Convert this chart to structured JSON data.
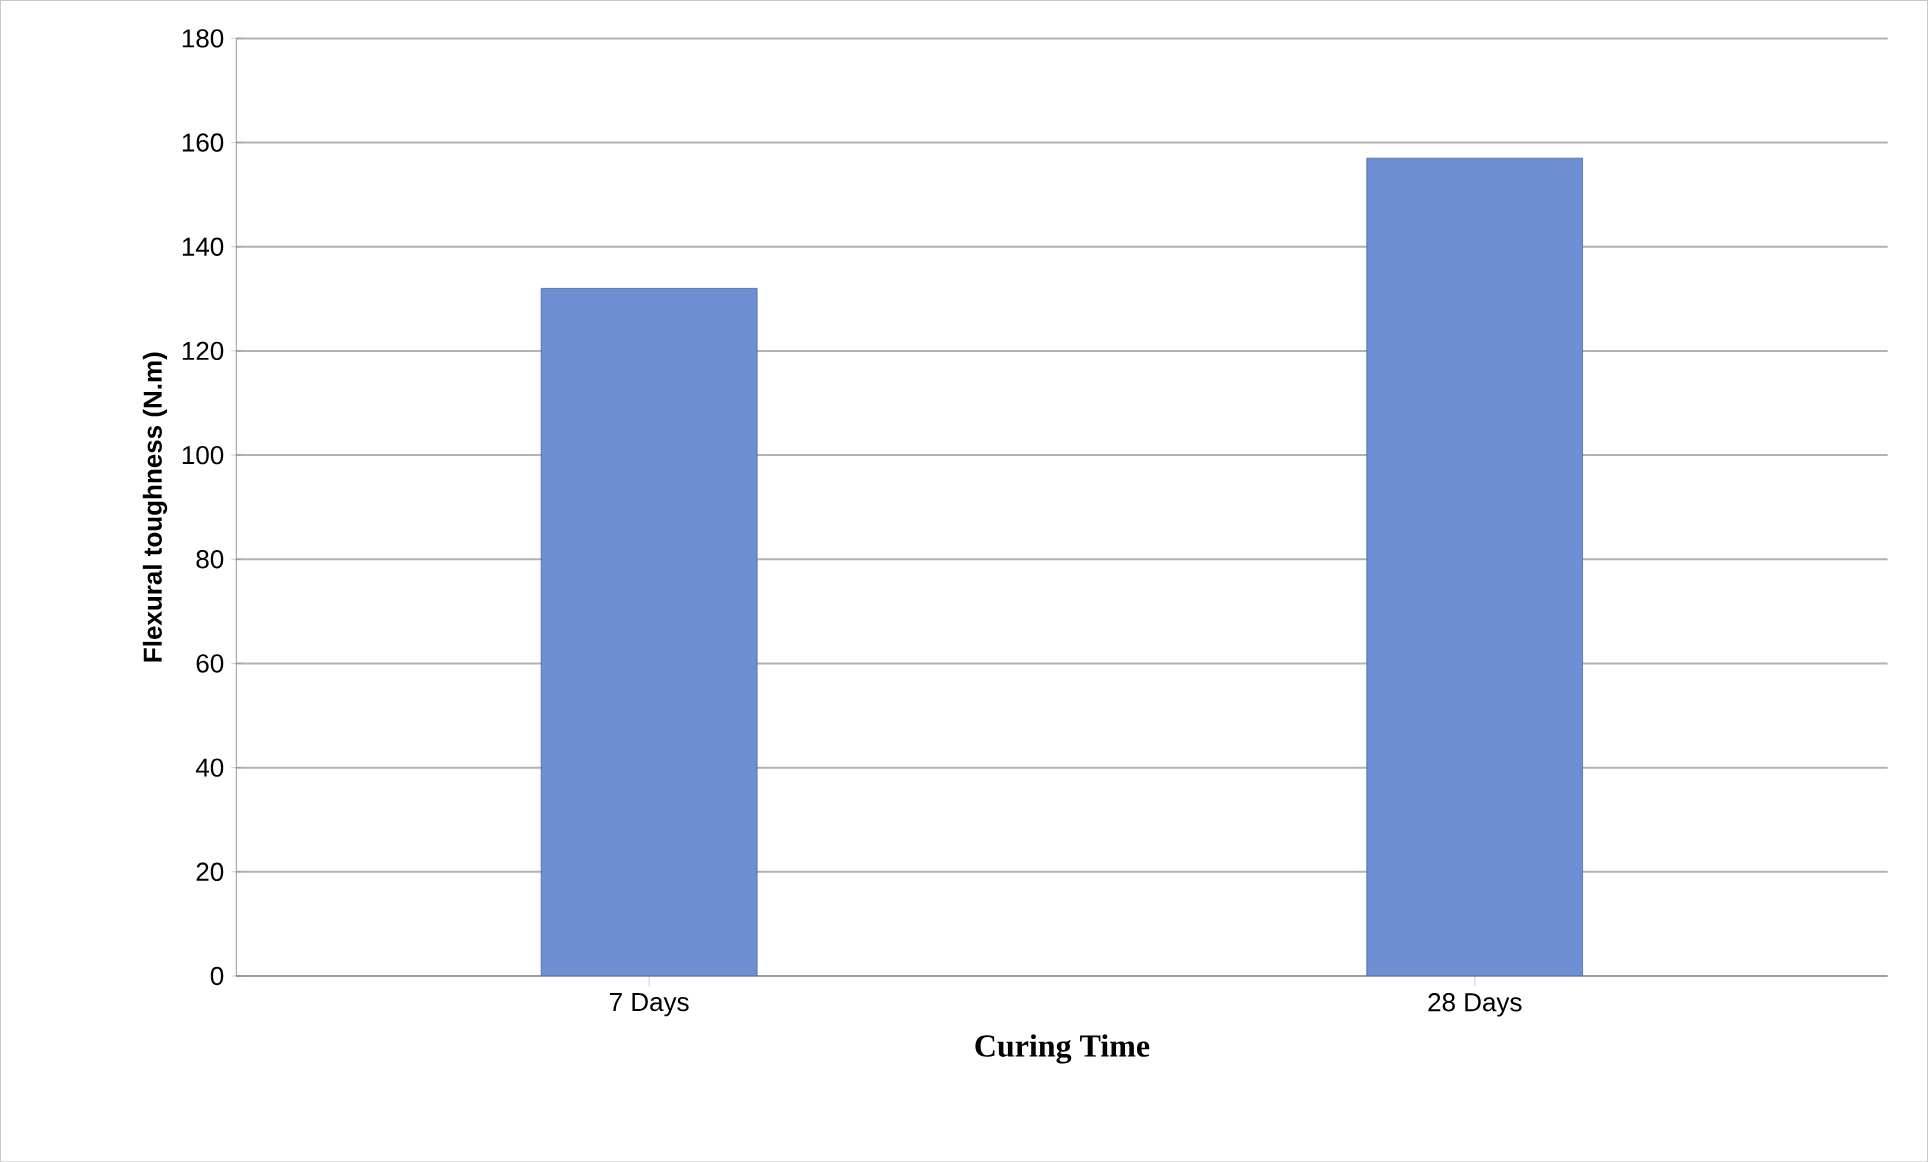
{
  "chart_data": {
    "type": "bar",
    "xlabel": "Curing Time",
    "ylabel": "Flexural toughness (N.m)",
    "categories": [
      "7 Days",
      "28 Days"
    ],
    "values": [
      132,
      157
    ],
    "color": "#6f8fd4",
    "ylim": [
      0,
      180
    ],
    "yticks": [
      0,
      20,
      40,
      60,
      80,
      100,
      120,
      140,
      160,
      180
    ],
    "grid": "y"
  }
}
